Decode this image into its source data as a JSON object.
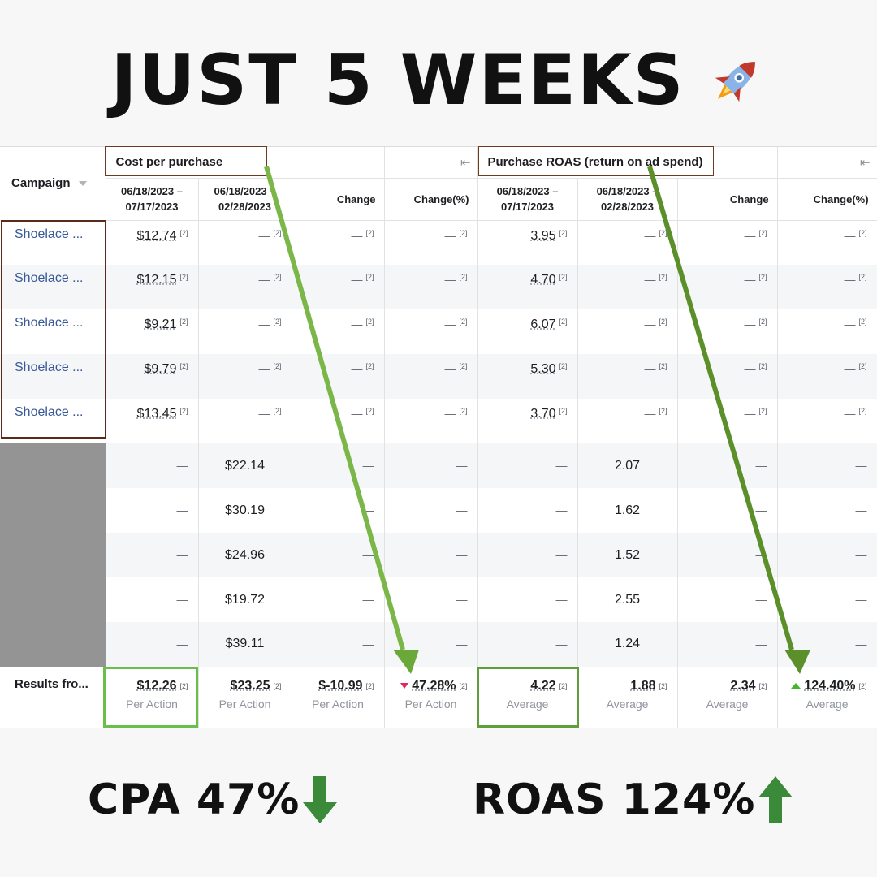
{
  "headline": {
    "text": "JUST 5 WEEKS",
    "icon": "rocket-icon"
  },
  "table": {
    "campaign_header": "Campaign",
    "groups": [
      {
        "title": "Cost per purchase",
        "collapse_icon": "⇤"
      },
      {
        "title": "Purchase ROAS (return on ad spend)",
        "collapse_icon": "⇤"
      }
    ],
    "subheaders": {
      "period_a_line1": "06/18/2023 –",
      "period_a_line2": "07/17/2023",
      "period_b_line1": "06/18/2023 –",
      "period_b_line2": "02/28/2023",
      "change": "Change",
      "change_pct": "Change(%)"
    },
    "footnote_marker": "[2]",
    "dash": "—",
    "campaign_rows": [
      {
        "name": "Shoelace ...",
        "cpp": "$12.74",
        "roas": "3.95"
      },
      {
        "name": "Shoelace ...",
        "cpp": "$12.15",
        "roas": "4.70"
      },
      {
        "name": "Shoelace ...",
        "cpp": "$9.21",
        "roas": "6.07"
      },
      {
        "name": "Shoelace ...",
        "cpp": "$9.79",
        "roas": "5.30"
      },
      {
        "name": "Shoelace ...",
        "cpp": "$13.45",
        "roas": "3.70"
      }
    ],
    "previous_rows": [
      {
        "cpp": "$22.14",
        "roas": "2.07"
      },
      {
        "cpp": "$30.19",
        "roas": "1.62"
      },
      {
        "cpp": "$24.96",
        "roas": "1.52"
      },
      {
        "cpp": "$19.72",
        "roas": "2.55"
      },
      {
        "cpp": "$39.11",
        "roas": "1.24"
      }
    ],
    "results": {
      "label": "Results fro...",
      "cpp_a": "$12.26",
      "cpp_b": "$23.25",
      "cpp_change": "$-10.99",
      "cpp_change_pct": "47.28%",
      "cpp_sub": "Per Action",
      "roas_a": "4.22",
      "roas_b": "1.88",
      "roas_change": "2.34",
      "roas_change_pct": "124.40%",
      "roas_sub": "Average"
    }
  },
  "summary": {
    "cpa": "CPA 47%",
    "roas": "ROAS 124%",
    "arrow_color": "#3a8a3a"
  },
  "colors": {
    "annotation_green": "#7ab648",
    "box_brown": "#6b3a22",
    "highlight_green": "#6aa84f",
    "link_blue": "#385898"
  }
}
